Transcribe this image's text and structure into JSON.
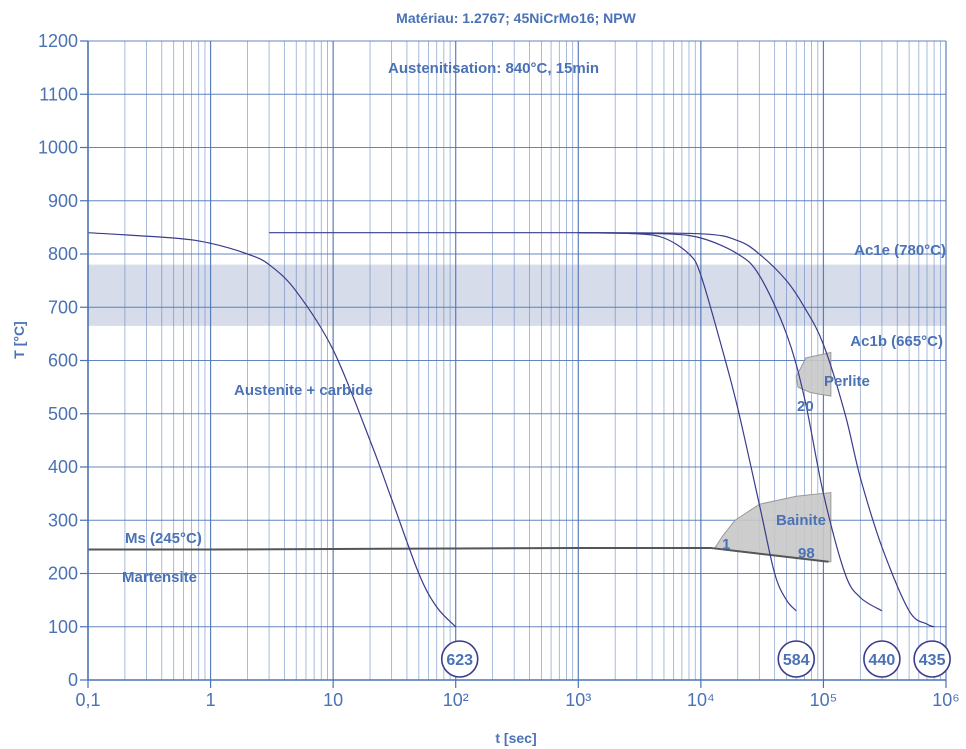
{
  "chart_data": {
    "type": "line",
    "title": "Matériau: 1.2767; 45NiCrMo16; NPW",
    "xlabel": "t [sec]",
    "ylabel": "T [°C]",
    "x_scale": "log",
    "xlim": [
      0.1,
      1000000
    ],
    "ylim": [
      0,
      1200
    ],
    "x_ticks": [
      0.1,
      1,
      10,
      100,
      1000,
      10000,
      100000,
      1000000
    ],
    "x_tick_labels": [
      "0,1",
      "1",
      "10",
      "10²",
      "10³",
      "10⁴",
      "10⁵",
      "10⁶"
    ],
    "y_ticks": [
      0,
      100,
      200,
      300,
      400,
      500,
      600,
      700,
      800,
      900,
      1000,
      1100,
      1200
    ],
    "y_tick_labels": [
      "0",
      "100",
      "200",
      "300",
      "400",
      "500",
      "600",
      "700",
      "800",
      "900",
      "1000",
      "1100",
      "1200"
    ],
    "grid": true,
    "colors": {
      "axis": "#4a72b5",
      "grid": "#4a72b5",
      "curve": "#3a3c8c",
      "band": "#d6dcea",
      "phase": "#c8c8c8",
      "ms_line": "#555555"
    },
    "annotations": {
      "austenitisation": "Austenitisation: 840°C, 15min",
      "ac1e": "Ac1e (780°C)",
      "ac1b": "Ac1b (665°C)",
      "austenite_carbide": "Austenite + carbide",
      "ms": "Ms (245°C)",
      "martensite": "Martensite",
      "perlite": "Perlite",
      "bainite": "Bainite",
      "label_20": "20",
      "label_1": "1",
      "label_98": "98"
    },
    "bands": [
      {
        "name": "Ac1 range",
        "y_from": 665,
        "y_to": 780
      }
    ],
    "ms_line": {
      "x": [
        0.1,
        1,
        10,
        100,
        1000,
        12000,
        110000
      ],
      "y": [
        245,
        245,
        246,
        247,
        248,
        248,
        222
      ]
    },
    "phase_regions": [
      {
        "name": "Perlite",
        "x": [
          115000,
          72000,
          60000,
          62000,
          78000,
          115000
        ],
        "y": [
          615,
          605,
          570,
          550,
          540,
          533
        ]
      },
      {
        "name": "Bainite",
        "x": [
          13000,
          15000,
          19000,
          30000,
          60000,
          115000,
          115000,
          68000,
          32000,
          18500,
          12000
        ],
        "y": [
          248,
          270,
          300,
          330,
          345,
          352,
          222,
          228,
          236,
          242,
          248
        ]
      }
    ],
    "hardness": [
      "623",
      "584",
      "440",
      "435"
    ],
    "series": [
      {
        "hardness_index": 0,
        "x": [
          0.1,
          0.5,
          1,
          2,
          3,
          5,
          10,
          20,
          30,
          50,
          70,
          100
        ],
        "y": [
          840,
          830,
          820,
          800,
          780,
          730,
          620,
          450,
          340,
          200,
          137,
          100
        ]
      },
      {
        "hardness_index": 1,
        "x": [
          3,
          100,
          1000,
          3000,
          5000,
          8000,
          10000,
          15000,
          20000,
          30000,
          40000,
          50000,
          60000
        ],
        "y": [
          840,
          840,
          840,
          838,
          830,
          800,
          760,
          620,
          510,
          330,
          200,
          150,
          130
        ]
      },
      {
        "hardness_index": 2,
        "x": [
          1000,
          5000,
          10000,
          20000,
          30000,
          50000,
          70000,
          100000,
          150000,
          200000,
          300000
        ],
        "y": [
          840,
          838,
          830,
          800,
          760,
          650,
          530,
          350,
          200,
          155,
          130
        ]
      },
      {
        "hardness_index": 3,
        "x": [
          1000,
          10000,
          20000,
          30000,
          50000,
          70000,
          100000,
          150000,
          200000,
          300000,
          500000,
          700000,
          800000
        ],
        "y": [
          840,
          838,
          825,
          800,
          750,
          700,
          630,
          500,
          380,
          250,
          130,
          105,
          100
        ]
      }
    ]
  }
}
